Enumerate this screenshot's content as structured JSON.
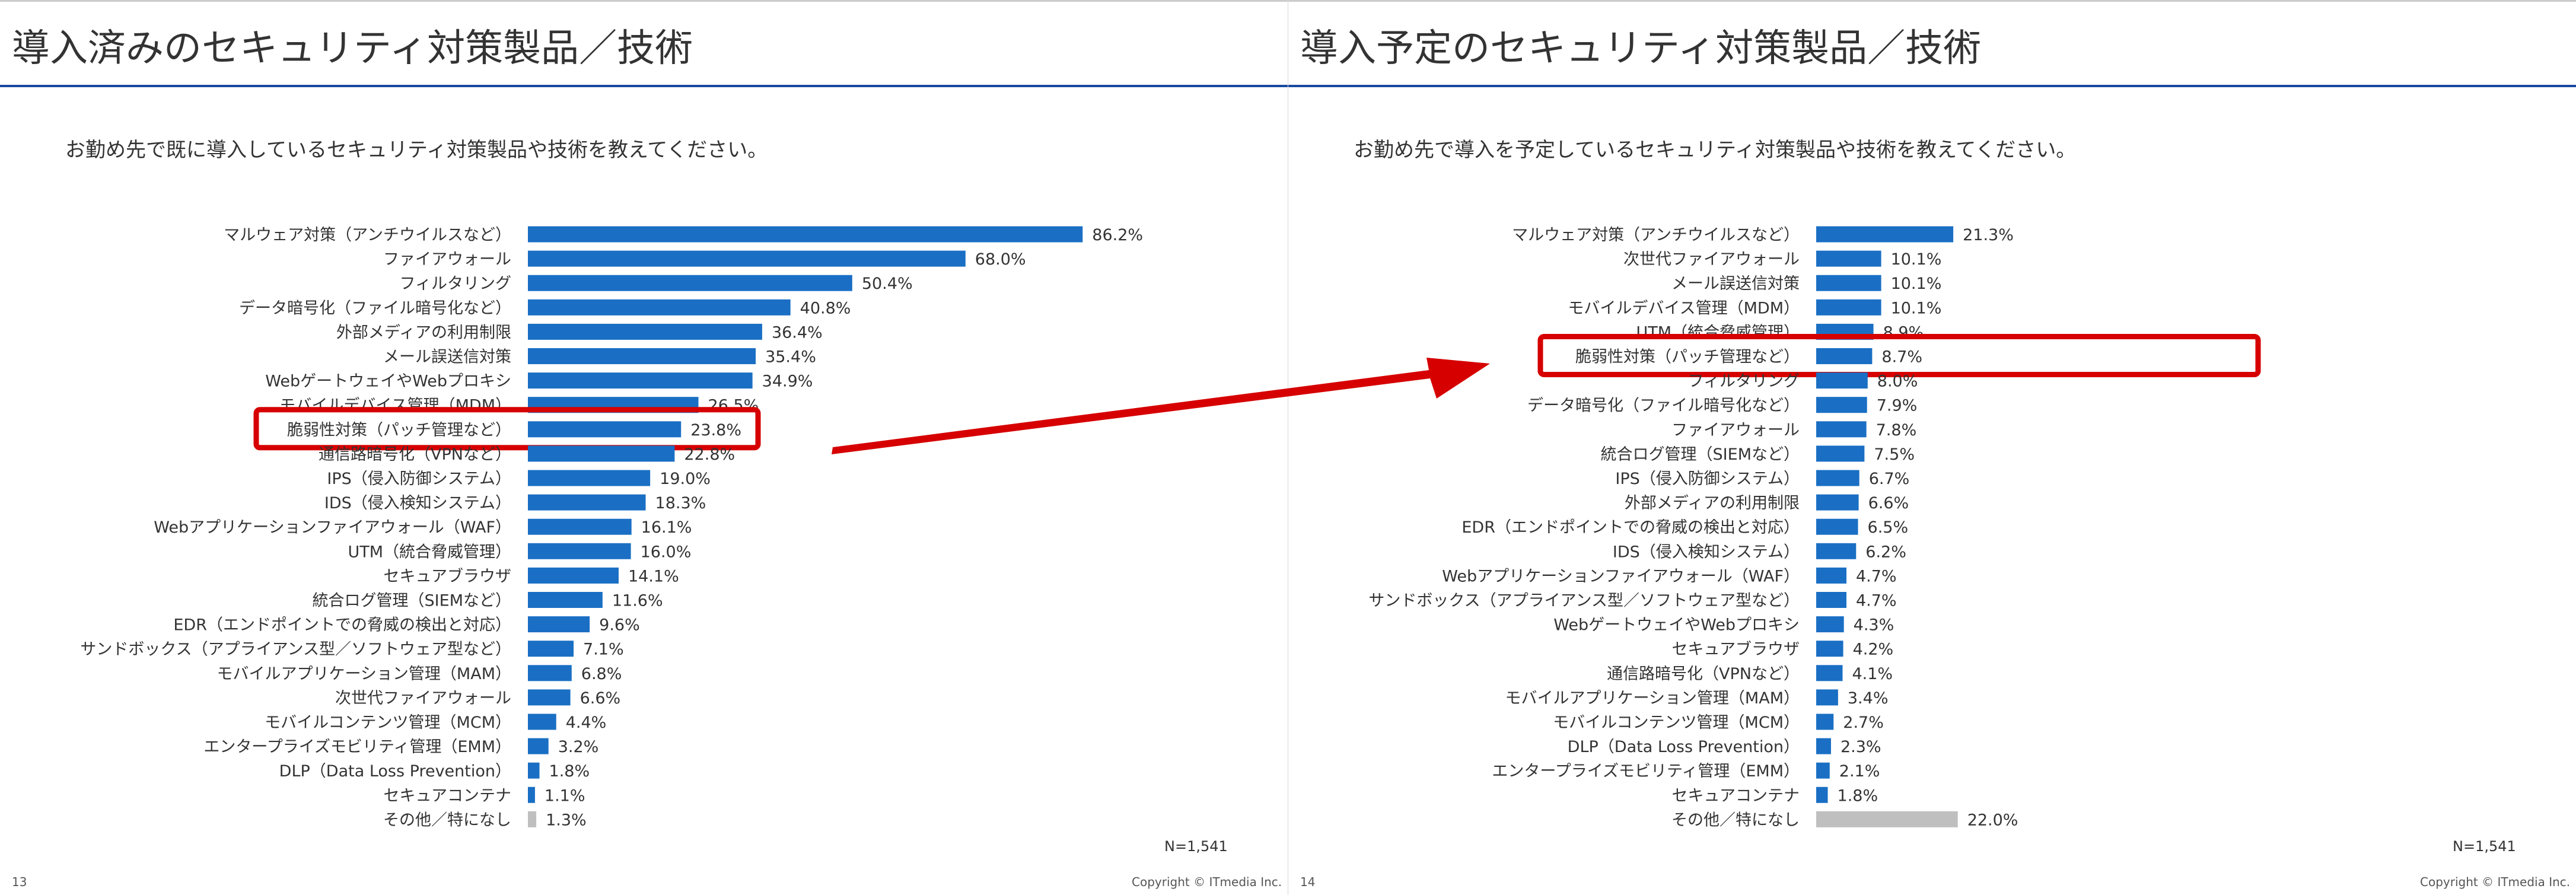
{
  "slides": [
    {
      "title": "導入済みのセキュリティ対策製品／技術",
      "question": "お勤め先で既に導入しているセキュリティ対策製品や技術を教えてください。",
      "n_label": "N=1,541",
      "page_number": "13",
      "copyright": "Copyright © ITmedia Inc.",
      "highlight_label": "脆弱性対策（パッチ管理など）"
    },
    {
      "title": "導入予定のセキュリティ対策製品／技術",
      "question": "お勤め先で導入を予定しているセキュリティ対策製品や技術を教えてください。",
      "n_label": "N=1,541",
      "page_number": "14",
      "copyright": "Copyright © ITmedia Inc.",
      "highlight_label": "脆弱性対策（パッチ管理など）"
    }
  ],
  "colors": {
    "bar": "#1a6fc4",
    "bar_other": "#bfbfbf",
    "highlight": "#d60000",
    "rule": "#1a4a9e"
  },
  "chart_data": [
    {
      "type": "bar",
      "orientation": "horizontal",
      "unit": "%",
      "xlim": [
        0,
        100
      ],
      "categories": [
        "マルウェア対策（アンチウイルスなど）",
        "ファイアウォール",
        "フィルタリング",
        "データ暗号化（ファイル暗号化など）",
        "外部メディアの利用制限",
        "メール誤送信対策",
        "WebゲートウェイやWebプロキシ",
        "モバイルデバイス管理（MDM）",
        "脆弱性対策（パッチ管理など）",
        "通信路暗号化（VPNなど）",
        "IPS（侵入防御システム）",
        "IDS（侵入検知システム）",
        "Webアプリケーションファイアウォール（WAF）",
        "UTM（統合脅威管理）",
        "セキュアブラウザ",
        "統合ログ管理（SIEMなど）",
        "EDR（エンドポイントでの脅威の検出と対応）",
        "サンドボックス（アプライアンス型／ソフトウェア型など）",
        "モバイルアプリケーション管理（MAM）",
        "次世代ファイアウォール",
        "モバイルコンテンツ管理（MCM）",
        "エンタープライズモビリティ管理（EMM）",
        "DLP（Data Loss Prevention）",
        "セキュアコンテナ",
        "その他／特になし"
      ],
      "values": [
        86.2,
        68.0,
        50.4,
        40.8,
        36.4,
        35.4,
        34.9,
        26.5,
        23.8,
        22.8,
        19.0,
        18.3,
        16.1,
        16.0,
        14.1,
        11.6,
        9.6,
        7.1,
        6.8,
        6.6,
        4.4,
        3.2,
        1.8,
        1.1,
        1.3
      ],
      "labels": [
        "86.2%",
        "68.0%",
        "50.4%",
        "40.8%",
        "36.4%",
        "35.4%",
        "34.9%",
        "26.5%",
        "23.8%",
        "22.8%",
        "19.0%",
        "18.3%",
        "16.1%",
        "16.0%",
        "14.1%",
        "11.6%",
        "9.6%",
        "7.1%",
        "6.8%",
        "6.6%",
        "4.4%",
        "3.2%",
        "1.8%",
        "1.1%",
        "1.3%"
      ],
      "gray_categories": [
        "その他／特になし"
      ],
      "highlighted_category": "脆弱性対策（パッチ管理など）"
    },
    {
      "type": "bar",
      "orientation": "horizontal",
      "unit": "%",
      "xlim": [
        0,
        100
      ],
      "categories": [
        "マルウェア対策（アンチウイルスなど）",
        "次世代ファイアウォール",
        "メール誤送信対策",
        "モバイルデバイス管理（MDM）",
        "UTM（統合脅威管理）",
        "脆弱性対策（パッチ管理など）",
        "フィルタリング",
        "データ暗号化（ファイル暗号化など）",
        "ファイアウォール",
        "統合ログ管理（SIEMなど）",
        "IPS（侵入防御システム）",
        "外部メディアの利用制限",
        "EDR（エンドポイントでの脅威の検出と対応）",
        "IDS（侵入検知システム）",
        "Webアプリケーションファイアウォール（WAF）",
        "サンドボックス（アプライアンス型／ソフトウェア型など）",
        "WebゲートウェイやWebプロキシ",
        "セキュアブラウザ",
        "通信路暗号化（VPNなど）",
        "モバイルアプリケーション管理（MAM）",
        "モバイルコンテンツ管理（MCM）",
        "DLP（Data Loss Prevention）",
        "エンタープライズモビリティ管理（EMM）",
        "セキュアコンテナ",
        "その他／特になし"
      ],
      "values": [
        21.3,
        10.1,
        10.1,
        10.1,
        8.9,
        8.7,
        8.0,
        7.9,
        7.8,
        7.5,
        6.7,
        6.6,
        6.5,
        6.2,
        4.7,
        4.7,
        4.3,
        4.2,
        4.1,
        3.4,
        2.7,
        2.3,
        2.1,
        1.8,
        22.0
      ],
      "labels": [
        "21.3%",
        "10.1%",
        "10.1%",
        "10.1%",
        "8.9%",
        "8.7%",
        "8.0%",
        "7.9%",
        "7.8%",
        "7.5%",
        "6.7%",
        "6.6%",
        "6.5%",
        "6.2%",
        "4.7%",
        "4.7%",
        "4.3%",
        "4.2%",
        "4.1%",
        "3.4%",
        "2.7%",
        "2.3%",
        "2.1%",
        "1.8%",
        "22.0%"
      ],
      "gray_categories": [
        "その他／特になし"
      ],
      "highlighted_category": "脆弱性対策（パッチ管理など）"
    }
  ]
}
